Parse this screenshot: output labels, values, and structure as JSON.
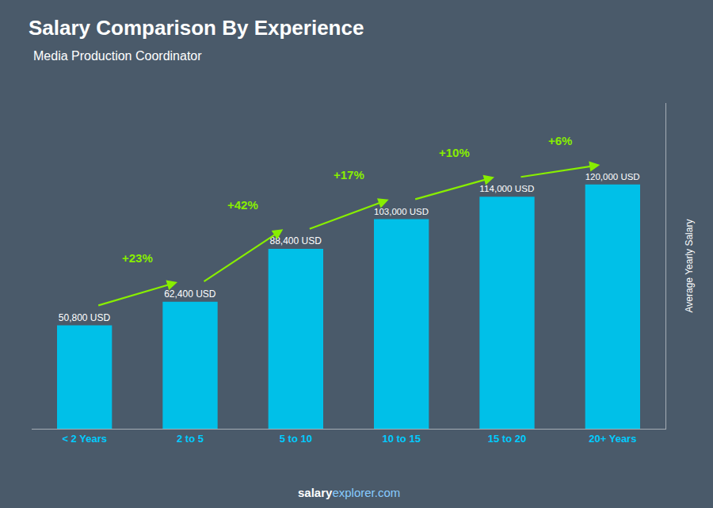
{
  "chart_data": {
    "type": "bar",
    "title": "Salary Comparison By Experience",
    "subtitle": "Media Production Coordinator",
    "ylabel": "Average Yearly Salary",
    "categories": [
      "< 2 Years",
      "2 to 5",
      "5 to 10",
      "10 to 15",
      "15 to 20",
      "20+ Years"
    ],
    "values": [
      50800,
      62400,
      88400,
      103000,
      114000,
      120000
    ],
    "value_labels": [
      "50,800 USD",
      "62,400 USD",
      "88,400 USD",
      "103,000 USD",
      "114,000 USD",
      "120,000 USD"
    ],
    "data_labels": true,
    "color": "#00c0e8",
    "ylim": [
      0,
      160000
    ],
    "yticks": [],
    "tick_labels": "x",
    "grid": false,
    "annotations": [
      {
        "text": "+23%",
        "from": "< 2 Years",
        "to": "2 to 5",
        "color": "#88ee00"
      },
      {
        "text": "+42%",
        "from": "2 to 5",
        "to": "5 to 10",
        "color": "#88ee00"
      },
      {
        "text": "+17%",
        "from": "5 to 10",
        "to": "10 to 15",
        "color": "#88ee00"
      },
      {
        "text": "+10%",
        "from": "10 to 15",
        "to": "15 to 20",
        "color": "#88ee00"
      },
      {
        "text": "+6%",
        "from": "15 to 20",
        "to": "20+ Years",
        "color": "#88ee00"
      }
    ],
    "footer": [
      "salary",
      "explorer.com"
    ]
  }
}
